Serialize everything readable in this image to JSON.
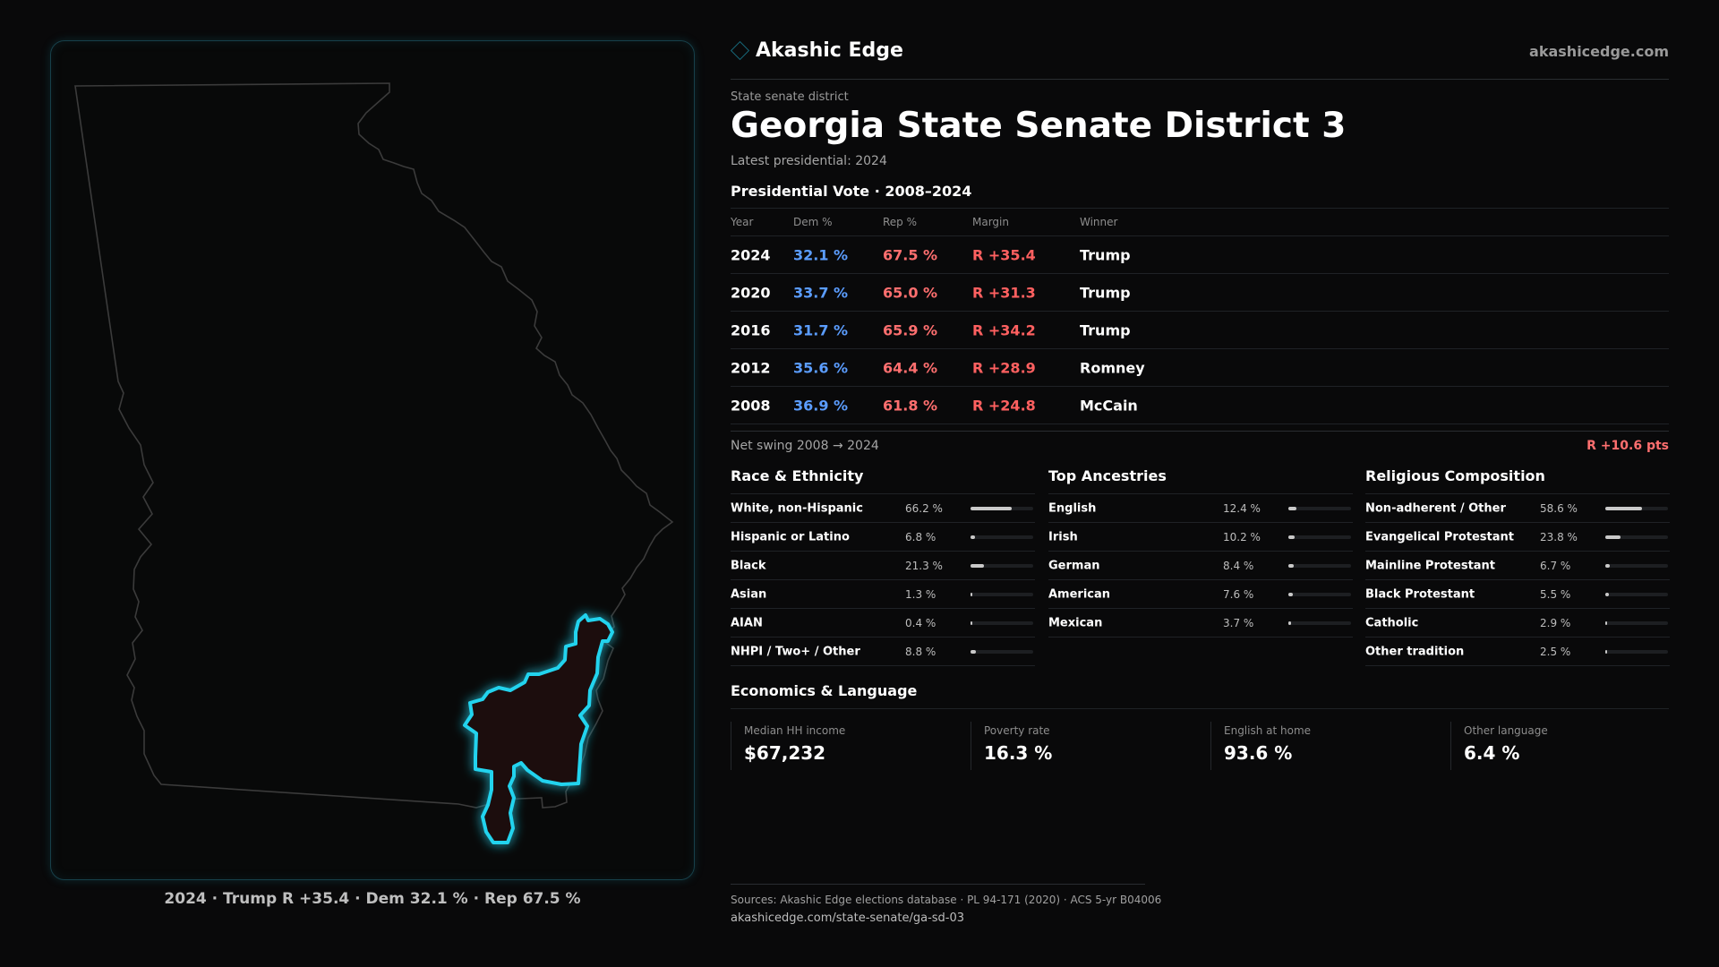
{
  "brand": {
    "name": "Akashic Edge",
    "url": "akashicedge.com",
    "icon": "diamond-outline-icon"
  },
  "header": {
    "eyebrow": "State senate district",
    "title": "Georgia State Senate District 3",
    "latest": "Latest presidential: 2024"
  },
  "map": {
    "caption": "2024 · Trump R +35.4 · Dem 32.1 % · Rep 67.5 %",
    "highlight_color": "#22d3ee",
    "state_outline_color": "#3b3b3b"
  },
  "presidential": {
    "heading": "Presidential Vote · 2008–2024",
    "columns": {
      "year": "Year",
      "dem": "Dem %",
      "rep": "Rep %",
      "margin": "Margin",
      "winner": "Winner"
    },
    "rows": [
      {
        "year": "2024",
        "dem": "32.1 %",
        "rep": "67.5 %",
        "margin": "R +35.4",
        "winner": "Trump"
      },
      {
        "year": "2020",
        "dem": "33.7 %",
        "rep": "65.0 %",
        "margin": "R +31.3",
        "winner": "Trump"
      },
      {
        "year": "2016",
        "dem": "31.7 %",
        "rep": "65.9 %",
        "margin": "R +34.2",
        "winner": "Trump"
      },
      {
        "year": "2012",
        "dem": "35.6 %",
        "rep": "64.4 %",
        "margin": "R +28.9",
        "winner": "Romney"
      },
      {
        "year": "2008",
        "dem": "36.9 %",
        "rep": "61.8 %",
        "margin": "R +24.8",
        "winner": "McCain"
      }
    ],
    "swing_label": "Net swing 2008 → 2024",
    "swing_value": "R +10.6 pts"
  },
  "race": {
    "heading": "Race & Ethnicity",
    "items": [
      {
        "label": "White, non-Hispanic",
        "value": "66.2 %",
        "pct": 66.2
      },
      {
        "label": "Hispanic or Latino",
        "value": "6.8 %",
        "pct": 6.8
      },
      {
        "label": "Black",
        "value": "21.3 %",
        "pct": 21.3
      },
      {
        "label": "Asian",
        "value": "1.3 %",
        "pct": 1.3
      },
      {
        "label": "AIAN",
        "value": "0.4 %",
        "pct": 0.4
      },
      {
        "label": "NHPI / Two+ / Other",
        "value": "8.8 %",
        "pct": 8.8
      }
    ]
  },
  "ancestry": {
    "heading": "Top Ancestries",
    "items": [
      {
        "label": "English",
        "value": "12.4 %",
        "pct": 12.4
      },
      {
        "label": "Irish",
        "value": "10.2 %",
        "pct": 10.2
      },
      {
        "label": "German",
        "value": "8.4 %",
        "pct": 8.4
      },
      {
        "label": "American",
        "value": "7.6 %",
        "pct": 7.6
      },
      {
        "label": "Mexican",
        "value": "3.7 %",
        "pct": 3.7
      }
    ]
  },
  "religion": {
    "heading": "Religious Composition",
    "items": [
      {
        "label": "Non-adherent / Other",
        "value": "58.6 %",
        "pct": 58.6
      },
      {
        "label": "Evangelical Protestant",
        "value": "23.8 %",
        "pct": 23.8
      },
      {
        "label": "Mainline Protestant",
        "value": "6.7 %",
        "pct": 6.7
      },
      {
        "label": "Black Protestant",
        "value": "5.5 %",
        "pct": 5.5
      },
      {
        "label": "Catholic",
        "value": "2.9 %",
        "pct": 2.9
      },
      {
        "label": "Other tradition",
        "value": "2.5 %",
        "pct": 2.5
      }
    ]
  },
  "economics": {
    "heading": "Economics & Language",
    "cells": [
      {
        "label": "Median HH income",
        "value": "$67,232"
      },
      {
        "label": "Poverty rate",
        "value": "16.3 %"
      },
      {
        "label": "English at home",
        "value": "93.6 %"
      },
      {
        "label": "Other language",
        "value": "6.4 %"
      }
    ]
  },
  "footer": {
    "sources": "Sources: Akashic Edge elections database · PL 94-171 (2020) · ACS 5-yr B04006",
    "url": "akashicedge.com/state-senate/ga-sd-03"
  }
}
